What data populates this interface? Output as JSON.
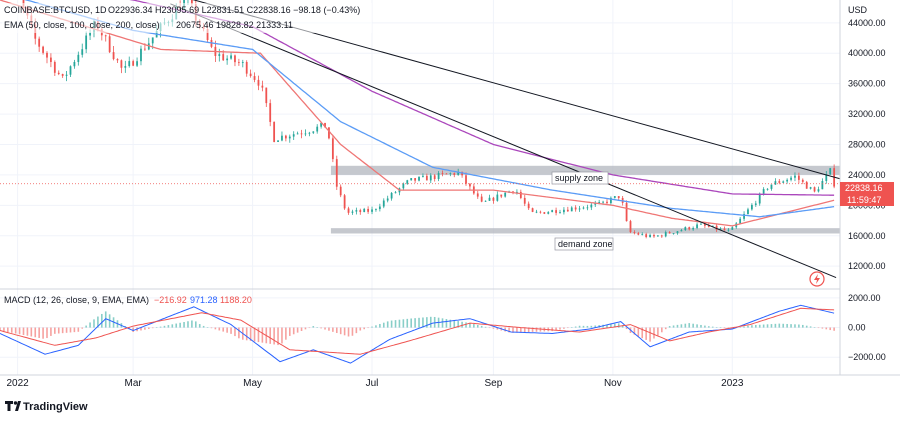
{
  "header": {
    "symbol": "COINBASE:BTCUSD, 1D",
    "ohlc": "O22936.34 H23095.69 L22831.51 C22838.16 −98.18 (−0.43%)",
    "ema": "EMA (50, close, 100, close, 200, close)",
    "ema_values": "20675.46 19828.82 21333.11",
    "macd": "MACD (12, 26, close, 9, EMA, EMA)",
    "macd_values": [
      "−216.92",
      "971.28",
      "1188.20"
    ],
    "currency": "USD"
  },
  "badges": {
    "price": "22838.16",
    "countdown": "11:59:47"
  },
  "annotations": {
    "supply": "supply zone",
    "demand": "demand zone"
  },
  "brand": "TradingView",
  "colors": {
    "up": "#26a69a",
    "down": "#ef5350",
    "ema50": "#ef7675",
    "ema100": "#5b9cf6",
    "ema200": "#ab47bc",
    "macd": "#2962ff",
    "signal": "#ef5350",
    "zone": "#b2b5be",
    "trend": "#131722"
  },
  "chart_data": [
    {
      "type": "candlestick",
      "title": "COINBASE:BTCUSD, 1D",
      "ylabel": "USD",
      "ylim": [
        9000,
        47000
      ],
      "price_ticks": [
        "44000.00",
        "40000.00",
        "36000.00",
        "32000.00",
        "28000.00",
        "24000.00",
        "20000.00",
        "16000.00",
        "12000.00"
      ],
      "x_ticks": [
        "2022",
        "Mar",
        "May",
        "Jul",
        "Sep",
        "Nov",
        "2023"
      ],
      "x_tick_dates": [
        "2022-01-01",
        "2022-03-01",
        "2022-05-01",
        "2022-07-01",
        "2022-09-01",
        "2022-11-01",
        "2023-01-01"
      ],
      "xlim": [
        "2021-12-23",
        "2023-02-25"
      ],
      "last_close": 22838.16,
      "price_path": [
        [
          "2021-12-23",
          50800
        ],
        [
          "2022-01-03",
          46500
        ],
        [
          "2022-01-10",
          41800
        ],
        [
          "2022-01-24",
          36500
        ],
        [
          "2022-02-10",
          44000
        ],
        [
          "2022-02-24",
          37500
        ],
        [
          "2022-03-28",
          47300
        ],
        [
          "2022-04-11",
          40000
        ],
        [
          "2022-04-26",
          38500
        ],
        [
          "2022-05-05",
          36000
        ],
        [
          "2022-05-12",
          28800
        ],
        [
          "2022-06-08",
          30500
        ],
        [
          "2022-06-13",
          22500
        ],
        [
          "2022-06-18",
          19000
        ],
        [
          "2022-07-01",
          19300
        ],
        [
          "2022-07-20",
          23200
        ],
        [
          "2022-08-14",
          24300
        ],
        [
          "2022-08-26",
          20200
        ],
        [
          "2022-09-12",
          22200
        ],
        [
          "2022-09-20",
          18900
        ],
        [
          "2022-10-25",
          20100
        ],
        [
          "2022-11-05",
          21300
        ],
        [
          "2022-11-09",
          16500
        ],
        [
          "2022-11-21",
          15800
        ],
        [
          "2022-12-15",
          17400
        ],
        [
          "2022-12-31",
          16550
        ],
        [
          "2023-01-14",
          20900
        ],
        [
          "2023-01-20",
          22700
        ],
        [
          "2023-02-02",
          23800
        ],
        [
          "2023-02-12",
          21700
        ],
        [
          "2023-02-20",
          24500
        ],
        [
          "2023-02-22",
          22838
        ]
      ],
      "ema": [
        {
          "name": "EMA 50",
          "value": 20675.46,
          "color": "#ef7675",
          "points": [
            [
              "2021-12-23",
              47000
            ],
            [
              "2022-03-15",
              40500
            ],
            [
              "2022-05-05",
              40000
            ],
            [
              "2022-06-15",
              28000
            ],
            [
              "2022-07-15",
              22000
            ],
            [
              "2022-09-01",
              22000
            ],
            [
              "2022-11-01",
              20000
            ],
            [
              "2022-12-01",
              18300
            ],
            [
              "2023-01-01",
              17300
            ],
            [
              "2023-02-22",
              20675
            ]
          ]
        },
        {
          "name": "EMA 100",
          "value": 19828.82,
          "color": "#5b9cf6",
          "points": [
            [
              "2021-12-23",
              48000
            ],
            [
              "2022-03-01",
              43000
            ],
            [
              "2022-05-01",
              40500
            ],
            [
              "2022-06-15",
              31000
            ],
            [
              "2022-08-01",
              25000
            ],
            [
              "2022-10-01",
              22000
            ],
            [
              "2022-12-01",
              19600
            ],
            [
              "2023-01-15",
              18500
            ],
            [
              "2023-02-22",
              19829
            ]
          ]
        },
        {
          "name": "EMA 200",
          "value": 21333.11,
          "color": "#ab47bc",
          "points": [
            [
              "2021-12-23",
              50000
            ],
            [
              "2022-03-01",
              47000
            ],
            [
              "2022-05-01",
              43500
            ],
            [
              "2022-07-01",
              35000
            ],
            [
              "2022-09-01",
              28000
            ],
            [
              "2022-11-01",
              24000
            ],
            [
              "2023-01-01",
              21500
            ],
            [
              "2023-02-22",
              21333
            ]
          ]
        }
      ],
      "zones": [
        {
          "name": "supply zone",
          "from": 24000,
          "to": 25200,
          "start": "2022-06-10",
          "end": "2023-02-25"
        },
        {
          "name": "demand zone",
          "from": 16300,
          "to": 17000,
          "start": "2022-06-10",
          "end": "2023-02-25"
        }
      ],
      "trendlines": [
        {
          "from": [
            "2022-03-28",
            47300
          ],
          "to": [
            "2023-02-25",
            23500
          ]
        },
        {
          "from": [
            "2022-03-20",
            46500
          ],
          "to": [
            "2023-02-23",
            10500
          ]
        }
      ]
    },
    {
      "type": "line",
      "title": "MACD (12, 26, close, 9, EMA, EMA)",
      "ylim": [
        -3200,
        2600
      ],
      "y_ticks": [
        "2000.00",
        "0.00",
        "−2000.00"
      ],
      "values": {
        "histogram": -216.92,
        "macd": 971.28,
        "signal": 1188.2
      },
      "series": [
        {
          "name": "MACD",
          "color": "#2962ff",
          "points": [
            [
              "2021-12-23",
              -400
            ],
            [
              "2022-01-15",
              -1800
            ],
            [
              "2022-02-01",
              -1200
            ],
            [
              "2022-02-15",
              600
            ],
            [
              "2022-03-01",
              -200
            ],
            [
              "2022-04-01",
              1400
            ],
            [
              "2022-04-20",
              200
            ],
            [
              "2022-05-15",
              -2300
            ],
            [
              "2022-06-01",
              -1500
            ],
            [
              "2022-06-20",
              -2400
            ],
            [
              "2022-07-10",
              -800
            ],
            [
              "2022-08-01",
              300
            ],
            [
              "2022-08-20",
              600
            ],
            [
              "2022-09-10",
              -300
            ],
            [
              "2022-10-01",
              -400
            ],
            [
              "2022-10-20",
              -100
            ],
            [
              "2022-11-05",
              400
            ],
            [
              "2022-11-20",
              -1300
            ],
            [
              "2022-12-10",
              -300
            ],
            [
              "2023-01-01",
              -100
            ],
            [
              "2023-01-25",
              1100
            ],
            [
              "2023-02-05",
              1500
            ],
            [
              "2023-02-22",
              971
            ]
          ]
        },
        {
          "name": "Signal",
          "color": "#ef5350",
          "points": [
            [
              "2021-12-23",
              -200
            ],
            [
              "2022-01-20",
              -1200
            ],
            [
              "2022-02-10",
              -700
            ],
            [
              "2022-03-01",
              100
            ],
            [
              "2022-04-05",
              1000
            ],
            [
              "2022-04-25",
              500
            ],
            [
              "2022-05-20",
              -1500
            ],
            [
              "2022-06-25",
              -1800
            ],
            [
              "2022-07-20",
              -900
            ],
            [
              "2022-08-20",
              300
            ],
            [
              "2022-09-15",
              0
            ],
            [
              "2022-10-15",
              -300
            ],
            [
              "2022-11-10",
              200
            ],
            [
              "2022-11-30",
              -900
            ],
            [
              "2022-12-20",
              -300
            ],
            [
              "2023-01-10",
              200
            ],
            [
              "2023-02-05",
              1300
            ],
            [
              "2023-02-22",
              1188
            ]
          ]
        }
      ]
    }
  ]
}
